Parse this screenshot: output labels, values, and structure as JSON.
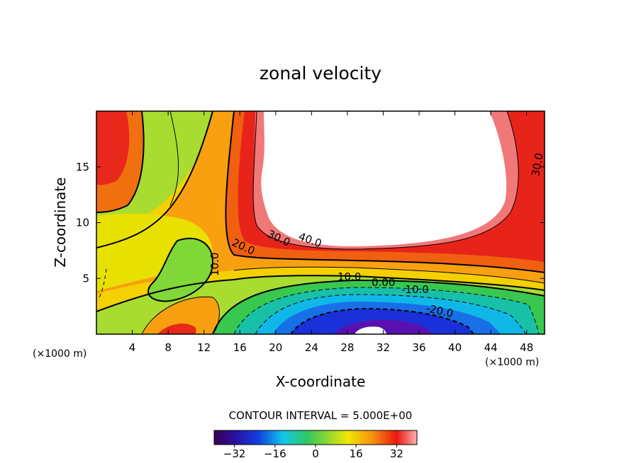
{
  "chart_data": {
    "type": "heatmap",
    "title": "zonal velocity",
    "xlabel": "X-coordinate",
    "ylabel": "Z-coordinate",
    "x_unit_label": "(×1000 m)",
    "xlim": [
      0,
      50
    ],
    "ylim": [
      0,
      20
    ],
    "x_ticks": [
      "4",
      "8",
      "12",
      "16",
      "20",
      "24",
      "28",
      "32",
      "36",
      "40",
      "44",
      "48"
    ],
    "y_ticks": [
      "5",
      "10",
      "15"
    ],
    "contour_interval_text": "CONTOUR INTERVAL = 5.000E+00",
    "colorbar": {
      "ticks": [
        "−32",
        "−16",
        "0",
        "16",
        "32"
      ],
      "range": [
        -40,
        40
      ]
    },
    "contour_labels": [
      "40.0",
      "30.0",
      "20.0",
      "10.0",
      "10.0",
      "0.00",
      "-10.0",
      "-20.0",
      "30.0"
    ],
    "colors": {
      "high": "#e11a10",
      "mid": "#f2e600",
      "zero": "#4ad040",
      "low": "#1a24d8",
      "min": "#6a0aa0",
      "max_saturated": "#ffffff"
    }
  }
}
